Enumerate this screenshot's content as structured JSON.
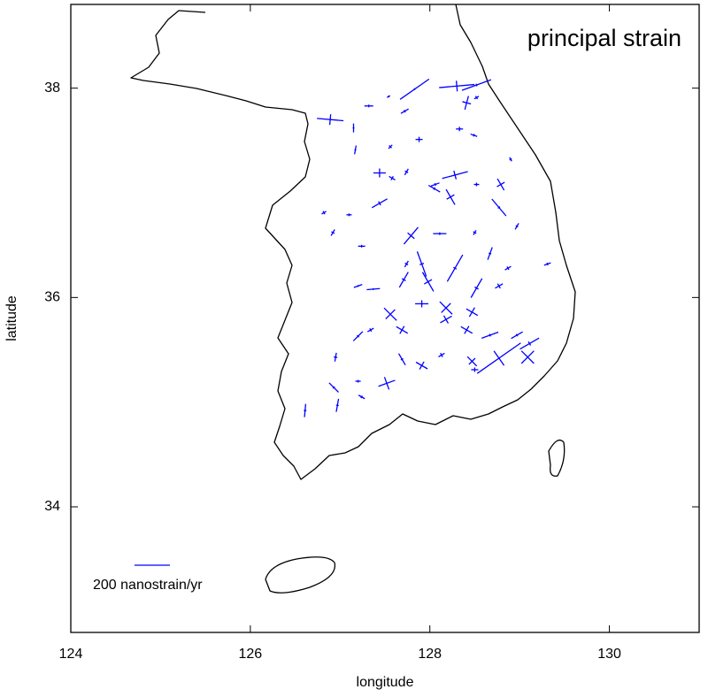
{
  "chart_data": {
    "type": "strain-map",
    "title": "principal strain",
    "x_label": "longitude",
    "y_label": "latitude",
    "xlim": [
      124,
      131
    ],
    "ylim": [
      32.8,
      38.8
    ],
    "xticks": [
      124,
      126,
      128,
      130
    ],
    "yticks": [
      34,
      36,
      38
    ],
    "color": "#0000ff",
    "scale": {
      "value": 200,
      "label": "200 nanostrain/yr"
    },
    "stations": {
      "lon": [
        126.89,
        127.15,
        127.54,
        127.32,
        127.72,
        127.83,
        128.3,
        128.52,
        128.41,
        128.52,
        128.33,
        128.49,
        127.88,
        127.56,
        127.17,
        127.44,
        127.58,
        127.74,
        128.28,
        128.06,
        128.05,
        128.23,
        128.52,
        128.79,
        128.77,
        128.9,
        127.44,
        127.79,
        128.11,
        128.5,
        128.97,
        127.24,
        126.92,
        127.1,
        126.82,
        127.74,
        127.91,
        127.98,
        128.28,
        128.67,
        128.87,
        129.31,
        127.71,
        127.37,
        127.2,
        128.52,
        128.77,
        128.18,
        127.91,
        127.56,
        127.69,
        128.18,
        128.47,
        127.34,
        127.2,
        128.41,
        128.67,
        128.97,
        126.95,
        127.69,
        127.91,
        128.13,
        128.47,
        128.77,
        129.09,
        129.11,
        128.5,
        127.52,
        126.93,
        127.2,
        126.97,
        127.24,
        126.61
      ],
      "lat": [
        37.7,
        37.62,
        37.92,
        37.83,
        37.78,
        37.99,
        38.02,
        38.03,
        37.86,
        37.91,
        37.61,
        37.55,
        37.51,
        37.44,
        37.41,
        37.19,
        37.14,
        37.2,
        37.17,
        37.08,
        37.04,
        36.96,
        37.08,
        37.08,
        36.86,
        37.32,
        36.9,
        36.59,
        36.61,
        36.62,
        36.68,
        36.49,
        36.62,
        36.79,
        36.81,
        36.32,
        36.32,
        36.15,
        36.28,
        36.42,
        36.28,
        36.32,
        36.17,
        36.08,
        36.11,
        36.09,
        36.11,
        35.9,
        35.94,
        35.84,
        35.69,
        35.79,
        35.86,
        35.69,
        35.63,
        35.69,
        35.64,
        35.64,
        35.43,
        35.41,
        35.35,
        35.45,
        35.39,
        35.42,
        35.43,
        35.56,
        35.31,
        35.18,
        35.14,
        35.2,
        34.97,
        35.05,
        34.92
      ],
      "e1": [
        150,
        50,
        20,
        50,
        50,
        200,
        200,
        175,
        80,
        30,
        40,
        40,
        40,
        30,
        50,
        70,
        40,
        40,
        150,
        50,
        75,
        100,
        30,
        75,
        125,
        25,
        100,
        125,
        75,
        30,
        40,
        40,
        40,
        30,
        30,
        40,
        150,
        125,
        175,
        75,
        40,
        40,
        100,
        75,
        50,
        125,
        50,
        100,
        75,
        100,
        75,
        75,
        75,
        40,
        75,
        75,
        100,
        75,
        50,
        75,
        75,
        40,
        75,
        300,
        100,
        125,
        40,
        100,
        75,
        30,
        75,
        40,
        75
      ],
      "e2": [
        60,
        10,
        10,
        15,
        15,
        10,
        60,
        15,
        50,
        20,
        25,
        15,
        30,
        20,
        10,
        50,
        25,
        20,
        50,
        15,
        15,
        50,
        20,
        50,
        15,
        15,
        25,
        50,
        15,
        20,
        15,
        15,
        20,
        15,
        20,
        20,
        25,
        50,
        20,
        15,
        20,
        15,
        25,
        10,
        10,
        25,
        30,
        75,
        40,
        75,
        50,
        50,
        60,
        20,
        15,
        50,
        15,
        15,
        20,
        15,
        50,
        25,
        50,
        100,
        100,
        25,
        25,
        75,
        15,
        15,
        15,
        15,
        15
      ],
      "azimuth": [
        -5,
        90,
        30,
        0,
        30,
        35,
        5,
        20,
        75,
        30,
        0,
        -20,
        0,
        45,
        80,
        0,
        -30,
        60,
        15,
        20,
        -30,
        -60,
        0,
        -60,
        -50,
        -60,
        30,
        50,
        0,
        60,
        60,
        0,
        60,
        0,
        30,
        60,
        -70,
        -60,
        60,
        70,
        30,
        20,
        60,
        5,
        20,
        60,
        30,
        -45,
        0,
        -45,
        -30,
        30,
        -30,
        30,
        45,
        -30,
        20,
        30,
        80,
        -60,
        -30,
        30,
        -45,
        35,
        45,
        30,
        0,
        20,
        -45,
        0,
        80,
        -30,
        85
      ]
    }
  }
}
